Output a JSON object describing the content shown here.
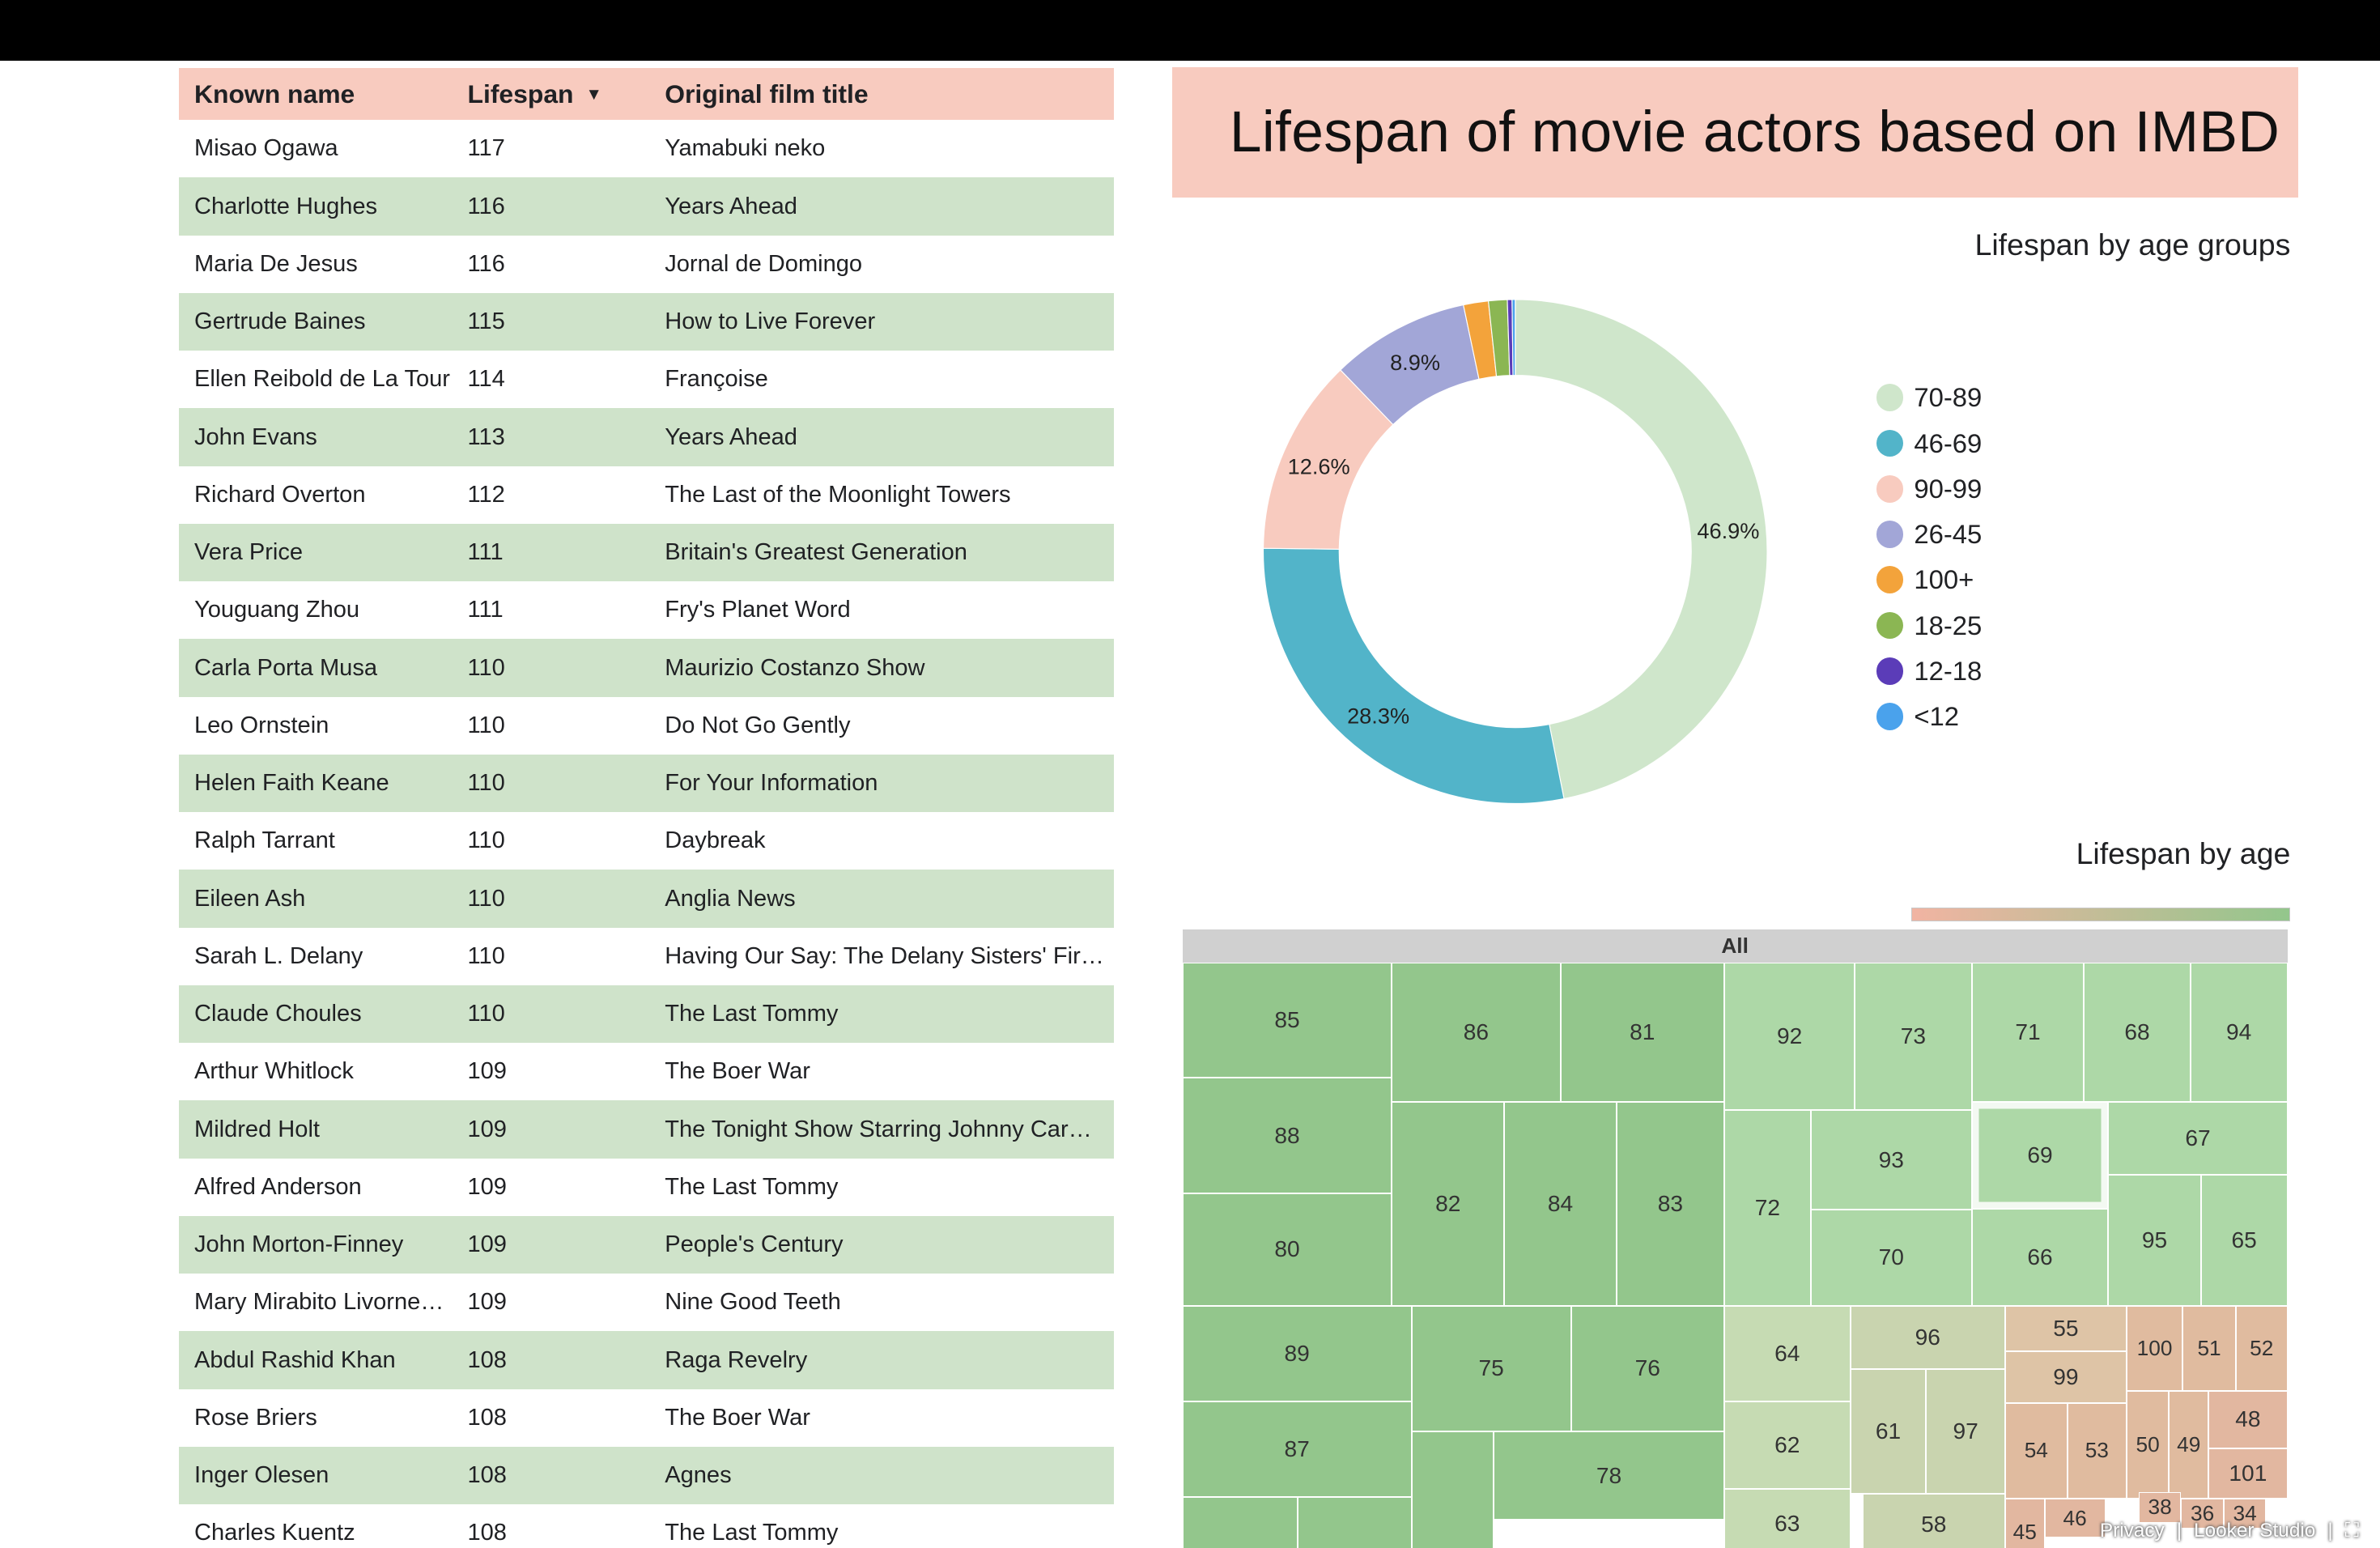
{
  "table": {
    "headers": {
      "name": "Known name",
      "lifespan": "Lifespan",
      "title": "Original film title"
    },
    "rows": [
      {
        "name": "Misao Ogawa",
        "lifespan": "117",
        "title": "Yamabuki neko"
      },
      {
        "name": "Charlotte Hughes",
        "lifespan": "116",
        "title": "Years Ahead"
      },
      {
        "name": "Maria De Jesus",
        "lifespan": "116",
        "title": "Jornal de Domingo"
      },
      {
        "name": "Gertrude Baines",
        "lifespan": "115",
        "title": "How to Live Forever"
      },
      {
        "name": "Ellen Reibold de La Tour",
        "lifespan": "114",
        "title": "Françoise"
      },
      {
        "name": "John Evans",
        "lifespan": "113",
        "title": "Years Ahead"
      },
      {
        "name": "Richard Overton",
        "lifespan": "112",
        "title": "The Last of the Moonlight Towers"
      },
      {
        "name": "Vera Price",
        "lifespan": "111",
        "title": "Britain's Greatest Generation"
      },
      {
        "name": "Youguang Zhou",
        "lifespan": "111",
        "title": "Fry's Planet Word"
      },
      {
        "name": "Carla Porta Musa",
        "lifespan": "110",
        "title": "Maurizio Costanzo Show"
      },
      {
        "name": "Leo Ornstein",
        "lifespan": "110",
        "title": "Do Not Go Gently"
      },
      {
        "name": "Helen Faith Keane",
        "lifespan": "110",
        "title": "For Your Information"
      },
      {
        "name": "Ralph Tarrant",
        "lifespan": "110",
        "title": "Daybreak"
      },
      {
        "name": "Eileen Ash",
        "lifespan": "110",
        "title": "Anglia News"
      },
      {
        "name": "Sarah L. Delany",
        "lifespan": "110",
        "title": "Having Our Say: The Delany Sisters' Fir…"
      },
      {
        "name": "Claude Choules",
        "lifespan": "110",
        "title": "The Last Tommy"
      },
      {
        "name": "Arthur Whitlock",
        "lifespan": "109",
        "title": "The Boer War"
      },
      {
        "name": "Mildred Holt",
        "lifespan": "109",
        "title": "The Tonight Show Starring Johnny Car…"
      },
      {
        "name": "Alfred Anderson",
        "lifespan": "109",
        "title": "The Last Tommy"
      },
      {
        "name": "John Morton-Finney",
        "lifespan": "109",
        "title": "People's Century"
      },
      {
        "name": "Mary Mirabito Livorne…",
        "lifespan": "109",
        "title": "Nine Good Teeth"
      },
      {
        "name": "Abdul Rashid Khan",
        "lifespan": "108",
        "title": "Raga Revelry"
      },
      {
        "name": "Rose Briers",
        "lifespan": "108",
        "title": "The Boer War"
      },
      {
        "name": "Inger Olesen",
        "lifespan": "108",
        "title": "Agnes"
      },
      {
        "name": "Charles Kuentz",
        "lifespan": "108",
        "title": "The Last Tommy"
      }
    ]
  },
  "report_title": "Lifespan of movie actors based on IMBD",
  "donut": {
    "title": "Lifespan by age groups",
    "labels": [
      "46.9%",
      "28.3%",
      "12.6%",
      "8.9%"
    ]
  },
  "treemap": {
    "title": "Lifespan by age",
    "root_label": "All",
    "colors": {
      "low": "#f1b4a2",
      "high": "#93c68c"
    }
  },
  "footer": {
    "privacy": "Privacy",
    "brand": "Looker Studio"
  },
  "chart_data": [
    {
      "type": "pie",
      "title": "Lifespan by age groups",
      "categories": [
        "70-89",
        "46-69",
        "90-99",
        "26-45",
        "100+",
        "18-25",
        "12-18",
        "<12"
      ],
      "values": [
        46.9,
        28.3,
        12.6,
        8.9,
        1.6,
        1.2,
        0.3,
        0.2
      ],
      "colors": [
        "#cfe6cb",
        "#52b4c9",
        "#f8cbbf",
        "#a2a6d7",
        "#f3a33b",
        "#8bb653",
        "#5b3cb8",
        "#4aa2ec"
      ],
      "legend": "right"
    },
    {
      "type": "heatmap",
      "title": "Lifespan by age",
      "categories": [
        "85",
        "86",
        "81",
        "92",
        "73",
        "71",
        "68",
        "94",
        "88",
        "82",
        "84",
        "83",
        "72",
        "93",
        "69",
        "67",
        "80",
        "70",
        "66",
        "95",
        "65",
        "89",
        "75",
        "76",
        "64",
        "96",
        "55",
        "100",
        "51",
        "52",
        "99",
        "61",
        "97",
        "54",
        "53",
        "50",
        "49",
        "48",
        "87",
        "78",
        "62",
        "101",
        "63",
        "58",
        "38",
        "36",
        "34",
        "46",
        "45"
      ]
    }
  ]
}
